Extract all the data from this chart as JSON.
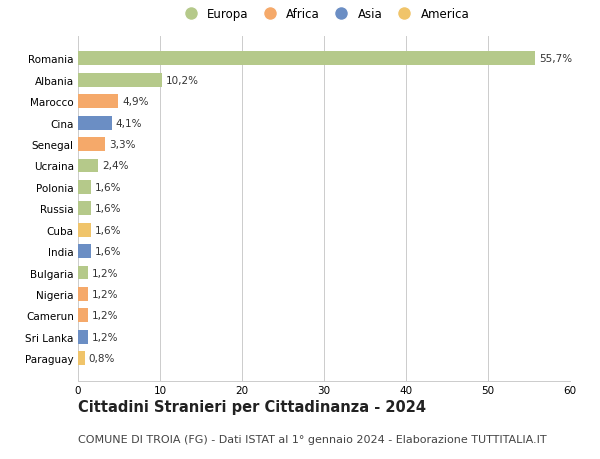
{
  "categories": [
    "Paraguay",
    "Sri Lanka",
    "Camerun",
    "Nigeria",
    "Bulgaria",
    "India",
    "Cuba",
    "Russia",
    "Polonia",
    "Ucraina",
    "Senegal",
    "Cina",
    "Marocco",
    "Albania",
    "Romania"
  ],
  "values": [
    0.8,
    1.2,
    1.2,
    1.2,
    1.2,
    1.6,
    1.6,
    1.6,
    1.6,
    2.4,
    3.3,
    4.1,
    4.9,
    10.2,
    55.7
  ],
  "labels": [
    "0,8%",
    "1,2%",
    "1,2%",
    "1,2%",
    "1,2%",
    "1,6%",
    "1,6%",
    "1,6%",
    "1,6%",
    "2,4%",
    "3,3%",
    "4,1%",
    "4,9%",
    "10,2%",
    "55,7%"
  ],
  "colors": [
    "#f0c46a",
    "#6b8ec4",
    "#f5a96a",
    "#f5a96a",
    "#b5c98a",
    "#6b8ec4",
    "#f0c46a",
    "#b5c98a",
    "#b5c98a",
    "#b5c98a",
    "#f5a96a",
    "#6b8ec4",
    "#f5a96a",
    "#b5c98a",
    "#b5c98a"
  ],
  "legend": [
    {
      "label": "Europa",
      "color": "#b5c98a"
    },
    {
      "label": "Africa",
      "color": "#f5a96a"
    },
    {
      "label": "Asia",
      "color": "#6b8ec4"
    },
    {
      "label": "America",
      "color": "#f0c46a"
    }
  ],
  "title": "Cittadini Stranieri per Cittadinanza - 2024",
  "subtitle": "COMUNE DI TROIA (FG) - Dati ISTAT al 1° gennaio 2024 - Elaborazione TUTTITALIA.IT",
  "xlim": [
    0,
    60
  ],
  "xticks": [
    0,
    10,
    20,
    30,
    40,
    50,
    60
  ],
  "background_color": "#ffffff",
  "grid_color": "#cccccc",
  "bar_height": 0.65,
  "title_fontsize": 10.5,
  "subtitle_fontsize": 8,
  "label_fontsize": 7.5,
  "tick_fontsize": 7.5,
  "legend_fontsize": 8.5
}
